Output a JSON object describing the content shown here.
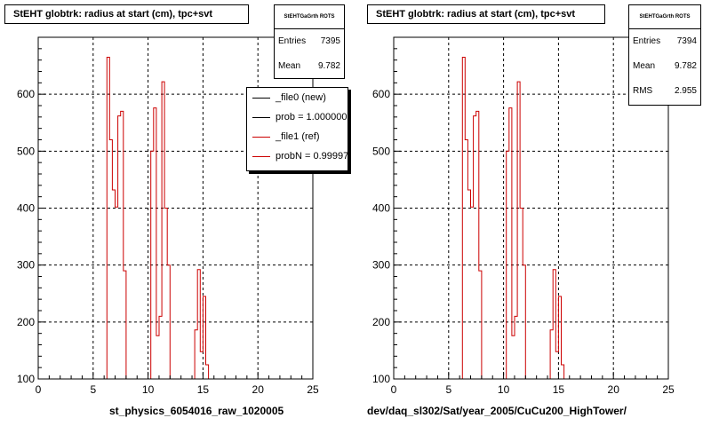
{
  "chart_data": [
    {
      "type": "histogram",
      "title": "StEHT globtrk: radius at start (cm), tpc+svt",
      "xlabel": "st_physics_6054016_raw_1020005",
      "xlim": [
        0,
        25
      ],
      "ylim": [
        100,
        700
      ],
      "xticks": [
        0,
        5,
        10,
        15,
        20,
        25
      ],
      "yticks": [
        100,
        200,
        300,
        400,
        500,
        600
      ],
      "grid": true,
      "stats": {
        "name": "StEHTGaGrth ROTS",
        "rows": [
          {
            "label": "Entries",
            "value": "7395"
          },
          {
            "label": "Mean",
            "value": "9.782"
          }
        ]
      },
      "legend": {
        "placement": "top-right",
        "entries": [
          {
            "label": "_file0 (new)",
            "color": "#000000"
          },
          {
            "label": "prob = 1.000000",
            "color": "#000000"
          },
          {
            "label": "_file1 (ref)",
            "color": "#cc0000"
          },
          {
            "label": "probN = 0.999970",
            "color": "#cc0000"
          }
        ]
      },
      "series": [
        {
          "color": "#cc0000",
          "bins": [
            [
              6.25,
              6.5,
              665
            ],
            [
              6.5,
              6.75,
              520
            ],
            [
              6.75,
              7.0,
              432
            ],
            [
              7.0,
              7.25,
              402
            ],
            [
              7.25,
              7.5,
              562
            ],
            [
              7.5,
              7.75,
              570
            ],
            [
              7.75,
              8.0,
              290
            ],
            [
              10.25,
              10.5,
              500
            ],
            [
              10.5,
              10.75,
              576
            ],
            [
              10.75,
              11.0,
              176
            ],
            [
              11.0,
              11.25,
              210
            ],
            [
              11.25,
              11.5,
              622
            ],
            [
              11.5,
              11.75,
              400
            ],
            [
              11.75,
              12.0,
              300
            ],
            [
              14.25,
              14.5,
              186
            ],
            [
              14.5,
              14.75,
              292
            ],
            [
              14.75,
              15.0,
              148
            ],
            [
              15.0,
              15.25,
              245
            ],
            [
              15.25,
              15.5,
              125
            ]
          ]
        }
      ]
    },
    {
      "type": "histogram",
      "title": "StEHT globtrk: radius at start (cm), tpc+svt",
      "xlabel": "dev/daq_sl302/Sat/year_2005/CuCu200_HighTower/",
      "xlim": [
        0,
        25
      ],
      "ylim": [
        100,
        700
      ],
      "xticks": [
        0,
        5,
        10,
        15,
        20,
        25
      ],
      "yticks": [
        100,
        200,
        300,
        400,
        500,
        600
      ],
      "grid": true,
      "stats": {
        "name": "StEHTGaGrth ROTS",
        "rows": [
          {
            "label": "Entries",
            "value": "7394"
          },
          {
            "label": "Mean",
            "value": "9.782"
          },
          {
            "label": "RMS",
            "value": "2.955"
          }
        ]
      },
      "series": [
        {
          "color": "#cc0000",
          "bins": [
            [
              6.25,
              6.5,
              665
            ],
            [
              6.5,
              6.75,
              520
            ],
            [
              6.75,
              7.0,
              432
            ],
            [
              7.0,
              7.25,
              402
            ],
            [
              7.25,
              7.5,
              562
            ],
            [
              7.5,
              7.75,
              570
            ],
            [
              7.75,
              8.0,
              290
            ],
            [
              10.25,
              10.5,
              500
            ],
            [
              10.5,
              10.75,
              576
            ],
            [
              10.75,
              11.0,
              176
            ],
            [
              11.0,
              11.25,
              210
            ],
            [
              11.25,
              11.5,
              622
            ],
            [
              11.5,
              11.75,
              400
            ],
            [
              11.75,
              12.0,
              300
            ],
            [
              14.25,
              14.5,
              186
            ],
            [
              14.5,
              14.75,
              292
            ],
            [
              14.75,
              15.0,
              148
            ],
            [
              15.0,
              15.25,
              245
            ],
            [
              15.25,
              15.5,
              125
            ]
          ]
        }
      ]
    }
  ]
}
